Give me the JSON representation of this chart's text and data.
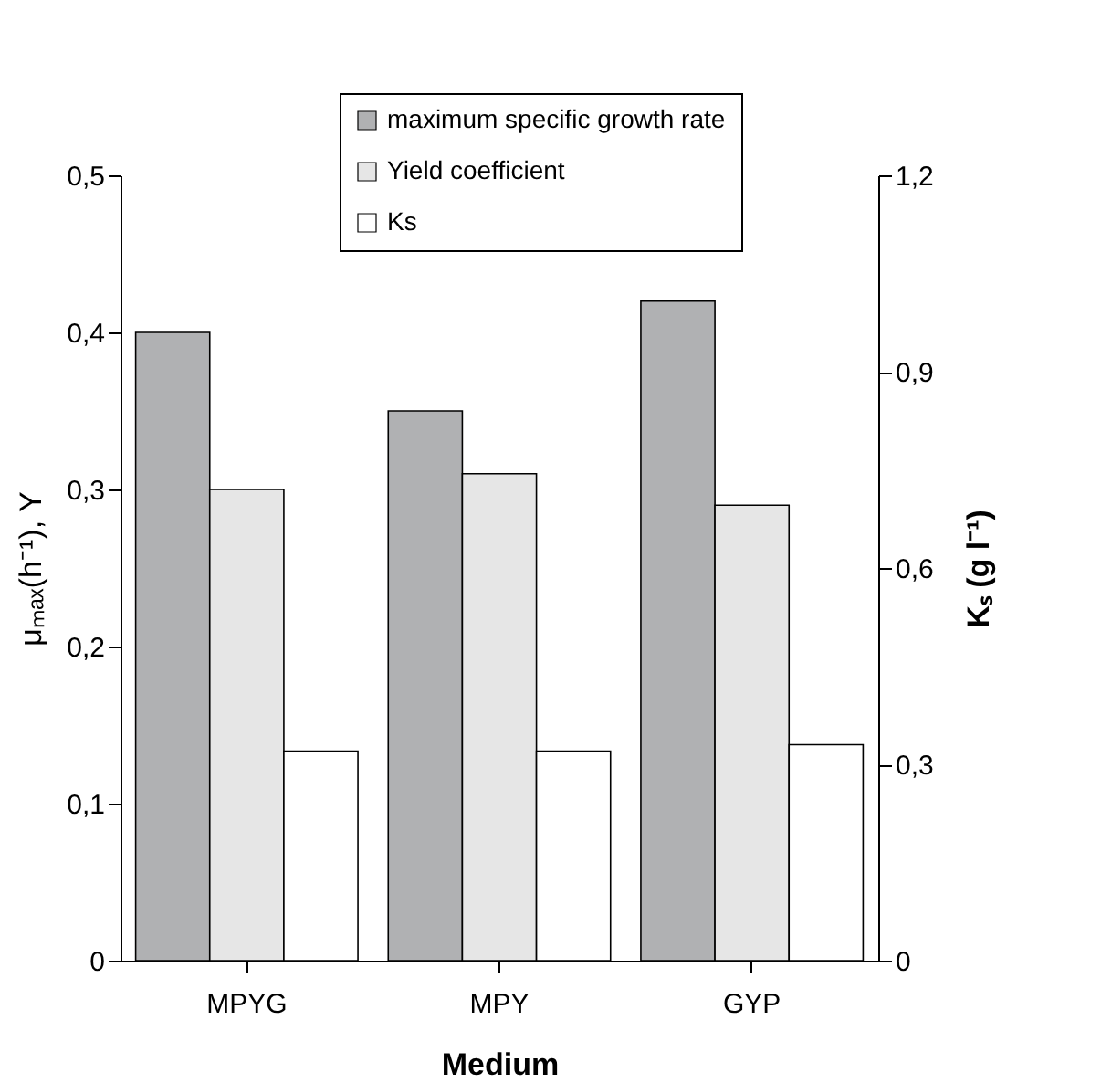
{
  "chart_data": {
    "type": "bar",
    "xlabel": "Medium",
    "ylabel": "μₘₐₓ(h⁻¹), Y",
    "y2label": "Kₛ (g l⁻¹)",
    "categories": [
      "MPYG",
      "MPY",
      "GYP"
    ],
    "series": [
      {
        "name": "maximum specific growth rate",
        "color": "#b0b1b3",
        "values": [
          0.4,
          0.35,
          0.42
        ]
      },
      {
        "name": "Yield coefficient",
        "color": "#e6e6e6",
        "values": [
          0.3,
          0.31,
          0.29
        ]
      },
      {
        "name": "Ks",
        "color": "#ffffff",
        "values": [
          0.32,
          0.32,
          0.33
        ],
        "axis": "y2"
      }
    ],
    "ylim": [
      0,
      0.5
    ],
    "yticks": [
      {
        "value": 0,
        "label": "0"
      },
      {
        "value": 0.1,
        "label": "0,1"
      },
      {
        "value": 0.2,
        "label": "0,2"
      },
      {
        "value": 0.3,
        "label": "0,3"
      },
      {
        "value": 0.4,
        "label": "0,4"
      },
      {
        "value": 0.5,
        "label": "0,5"
      }
    ],
    "y2lim": [
      0,
      1.2
    ],
    "y2ticks": [
      {
        "value": 0,
        "label": "0"
      },
      {
        "value": 0.3,
        "label": "0,3"
      },
      {
        "value": 0.6,
        "label": "0,6"
      },
      {
        "value": 0.9,
        "label": "0,9"
      },
      {
        "value": 1.2,
        "label": "1,2"
      }
    ],
    "legend": "top",
    "grid": false
  }
}
